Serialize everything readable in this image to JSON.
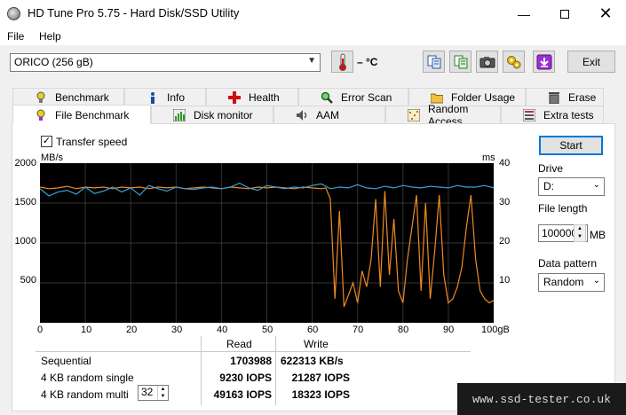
{
  "window": {
    "title": "HD Tune Pro 5.75 - Hard Disk/SSD Utility",
    "min_glyph": "—",
    "close_glyph": "✕"
  },
  "menu": {
    "file": "File",
    "help": "Help"
  },
  "toolbar": {
    "drive_selected": "ORICO (256 gB)",
    "temperature": "– °C",
    "exit_label": "Exit"
  },
  "tabs": [
    {
      "label": "Benchmark"
    },
    {
      "label": "Info"
    },
    {
      "label": "Health"
    },
    {
      "label": "Error Scan"
    },
    {
      "label": "Folder Usage"
    },
    {
      "label": "Erase"
    },
    {
      "label": "File Benchmark"
    },
    {
      "label": "Disk monitor"
    },
    {
      "label": "AAM"
    },
    {
      "label": "Random Access"
    },
    {
      "label": "Extra tests"
    }
  ],
  "benchmark": {
    "transfer_speed_label": "Transfer speed",
    "transfer_speed_checked": true,
    "check_glyph": "✓"
  },
  "chart_data": {
    "type": "line",
    "y_left_unit": "MB/s",
    "y_right_unit": "ms",
    "x_unit_suffix": "gB",
    "y_left_ticks": [
      "2000",
      "1500",
      "1000",
      "500"
    ],
    "y_right_ticks": [
      "40",
      "30",
      "20",
      "10"
    ],
    "x_ticks": [
      "0",
      "10",
      "20",
      "30",
      "40",
      "50",
      "60",
      "70",
      "80",
      "90",
      "100"
    ],
    "ylim": [
      0,
      2000
    ],
    "y2lim": [
      0,
      40
    ],
    "xlim": [
      0,
      100
    ],
    "grid": true,
    "series": [
      {
        "color": "#3aa0d8",
        "axis": "left",
        "x": [
          0,
          2,
          4,
          6,
          8,
          10,
          12,
          14,
          16,
          18,
          20,
          22,
          24,
          26,
          28,
          30,
          32,
          34,
          36,
          38,
          40,
          42,
          44,
          46,
          48,
          50,
          52,
          54,
          56,
          58,
          60,
          62,
          64,
          66,
          68,
          70,
          72,
          74,
          76,
          78,
          80,
          82,
          84,
          86,
          88,
          90,
          92,
          94,
          96,
          98,
          100
        ],
        "values": [
          1680,
          1590,
          1640,
          1660,
          1610,
          1700,
          1620,
          1650,
          1700,
          1640,
          1690,
          1600,
          1720,
          1680,
          1650,
          1700,
          1680,
          1670,
          1690,
          1700,
          1680,
          1700,
          1750,
          1690,
          1660,
          1720,
          1700,
          1680,
          1700,
          1690,
          1720,
          1740,
          1680,
          1700,
          1690,
          1730,
          1690,
          1680,
          1710,
          1690,
          1720,
          1700,
          1690,
          1710,
          1700,
          1690,
          1720,
          1700,
          1700,
          1720,
          1690
        ]
      },
      {
        "color": "#f08a24",
        "axis": "left",
        "x": [
          0,
          2,
          4,
          6,
          8,
          10,
          12,
          14,
          16,
          18,
          20,
          22,
          24,
          26,
          28,
          30,
          32,
          34,
          36,
          38,
          40,
          42,
          44,
          46,
          48,
          50,
          52,
          54,
          56,
          58,
          60,
          62,
          63,
          64,
          65,
          66,
          67,
          68,
          69,
          70,
          71,
          72,
          73,
          74,
          75,
          76,
          77,
          78,
          79,
          80,
          81,
          82,
          83,
          84,
          85,
          86,
          87,
          88,
          89,
          90,
          91,
          92,
          93,
          94,
          95,
          96,
          97,
          98,
          99,
          100
        ],
        "values": [
          1700,
          1680,
          1690,
          1710,
          1680,
          1700,
          1690,
          1700,
          1680,
          1700,
          1690,
          1700,
          1680,
          1700,
          1690,
          1700,
          1680,
          1690,
          1700,
          1690,
          1680,
          1700,
          1690,
          1680,
          1700,
          1690,
          1700,
          1690,
          1680,
          1700,
          1690,
          1680,
          1690,
          1550,
          300,
          1400,
          200,
          350,
          500,
          250,
          650,
          450,
          800,
          1550,
          450,
          1650,
          600,
          1300,
          400,
          250,
          800,
          1200,
          1600,
          400,
          1500,
          300,
          900,
          1600,
          600,
          250,
          300,
          450,
          700,
          1200,
          1600,
          800,
          400,
          300,
          250,
          280
        ]
      }
    ]
  },
  "results": {
    "col_read": "Read",
    "col_write": "Write",
    "rows": [
      {
        "label": "Sequential",
        "read": "1703988",
        "write": "622313 KB/s"
      },
      {
        "label": "4 KB random single",
        "read": "9230 IOPS",
        "write": "21287 IOPS"
      },
      {
        "label": "4 KB random multi",
        "read": "49163 IOPS",
        "write": "18323 IOPS"
      }
    ],
    "multi_queue": "32"
  },
  "side": {
    "start_label": "Start",
    "drive_label": "Drive",
    "drive_value": "D:",
    "file_length_label": "File length",
    "file_length_value": "100000",
    "file_length_unit": "MB",
    "pattern_label": "Data pattern",
    "pattern_value": "Random"
  },
  "watermark": "www.ssd-tester.co.uk"
}
